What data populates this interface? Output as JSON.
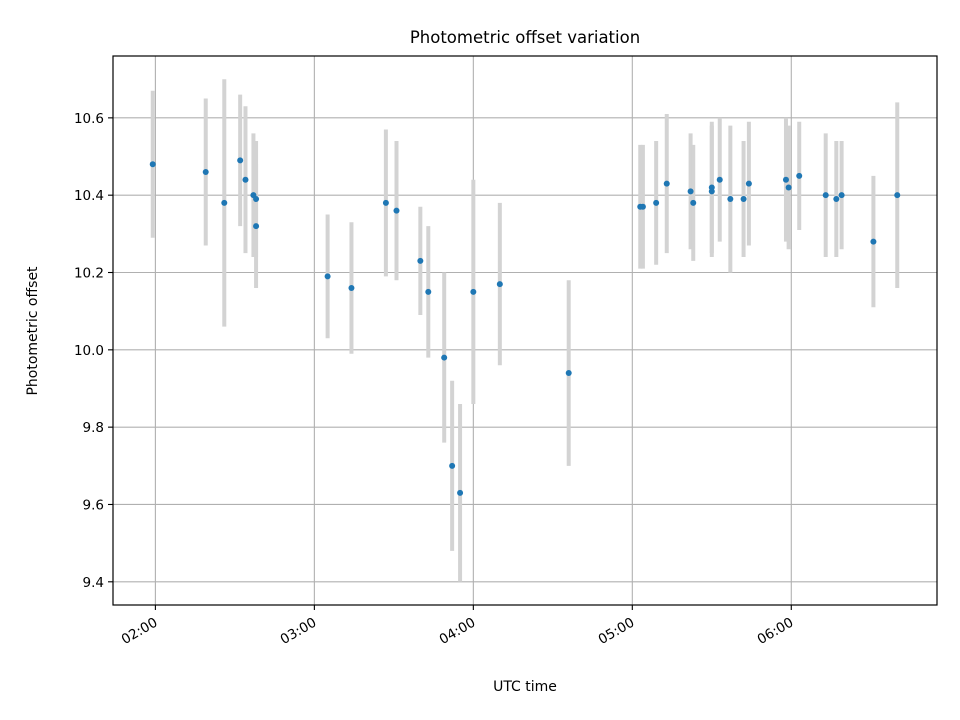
{
  "chart_data": {
    "type": "scatter",
    "title": "Photometric offset variation",
    "xlabel": "UTC time",
    "ylabel": "Photometric offset",
    "x_unit": "HH:MM UTC",
    "xlim": [
      "01:44",
      "06:55"
    ],
    "ylim": [
      9.34,
      10.76
    ],
    "x_ticks": [
      "02:00",
      "03:00",
      "04:00",
      "05:00",
      "06:00"
    ],
    "y_ticks": [
      9.4,
      9.6,
      9.8,
      10.0,
      10.2,
      10.4,
      10.6
    ],
    "y_tick_labels": [
      "9.4",
      "9.6",
      "9.8",
      "10.0",
      "10.2",
      "10.4",
      "10.6"
    ],
    "grid": true,
    "legend": "none",
    "colors": {
      "point": "#1f77b4",
      "errorbar": "#d3d3d3",
      "grid": "#b0b0b0"
    },
    "series": [
      {
        "points": [
          {
            "x": "01:59",
            "y": 10.48,
            "yerr": 0.19
          },
          {
            "x": "02:19",
            "y": 10.46,
            "yerr": 0.19
          },
          {
            "x": "02:26",
            "y": 10.38,
            "yerr": 0.32
          },
          {
            "x": "02:32",
            "y": 10.49,
            "yerr": 0.17
          },
          {
            "x": "02:34",
            "y": 10.44,
            "yerr": 0.19
          },
          {
            "x": "02:37",
            "y": 10.4,
            "yerr": 0.16
          },
          {
            "x": "02:38",
            "y": 10.39,
            "yerr": 0.15
          },
          {
            "x": "02:38",
            "y": 10.32,
            "yerr": 0.16
          },
          {
            "x": "03:05",
            "y": 10.19,
            "yerr": 0.16
          },
          {
            "x": "03:14",
            "y": 10.16,
            "yerr": 0.17
          },
          {
            "x": "03:27",
            "y": 10.38,
            "yerr": 0.19
          },
          {
            "x": "03:31",
            "y": 10.36,
            "yerr": 0.18
          },
          {
            "x": "03:40",
            "y": 10.23,
            "yerr": 0.14
          },
          {
            "x": "03:43",
            "y": 10.15,
            "yerr": 0.17
          },
          {
            "x": "03:49",
            "y": 9.98,
            "yerr": 0.22
          },
          {
            "x": "03:52",
            "y": 9.7,
            "yerr": 0.22
          },
          {
            "x": "03:55",
            "y": 9.63,
            "yerr": 0.23
          },
          {
            "x": "04:00",
            "y": 10.15,
            "yerr": 0.29
          },
          {
            "x": "04:10",
            "y": 10.17,
            "yerr": 0.21
          },
          {
            "x": "04:36",
            "y": 9.94,
            "yerr": 0.24
          },
          {
            "x": "05:03",
            "y": 10.37,
            "yerr": 0.16
          },
          {
            "x": "05:04",
            "y": 10.37,
            "yerr": 0.16
          },
          {
            "x": "05:09",
            "y": 10.38,
            "yerr": 0.16
          },
          {
            "x": "05:13",
            "y": 10.43,
            "yerr": 0.18
          },
          {
            "x": "05:22",
            "y": 10.41,
            "yerr": 0.15
          },
          {
            "x": "05:23",
            "y": 10.38,
            "yerr": 0.15
          },
          {
            "x": "05:30",
            "y": 10.41,
            "yerr": 0.17
          },
          {
            "x": "05:30",
            "y": 10.42,
            "yerr": 0.17
          },
          {
            "x": "05:33",
            "y": 10.44,
            "yerr": 0.16
          },
          {
            "x": "05:37",
            "y": 10.39,
            "yerr": 0.19
          },
          {
            "x": "05:42",
            "y": 10.39,
            "yerr": 0.15
          },
          {
            "x": "05:44",
            "y": 10.43,
            "yerr": 0.16
          },
          {
            "x": "05:58",
            "y": 10.44,
            "yerr": 0.16
          },
          {
            "x": "05:59",
            "y": 10.42,
            "yerr": 0.16
          },
          {
            "x": "06:03",
            "y": 10.45,
            "yerr": 0.14
          },
          {
            "x": "06:13",
            "y": 10.4,
            "yerr": 0.16
          },
          {
            "x": "06:17",
            "y": 10.39,
            "yerr": 0.15
          },
          {
            "x": "06:19",
            "y": 10.4,
            "yerr": 0.14
          },
          {
            "x": "06:31",
            "y": 10.28,
            "yerr": 0.17
          },
          {
            "x": "06:40",
            "y": 10.4,
            "yerr": 0.24
          }
        ]
      }
    ]
  }
}
